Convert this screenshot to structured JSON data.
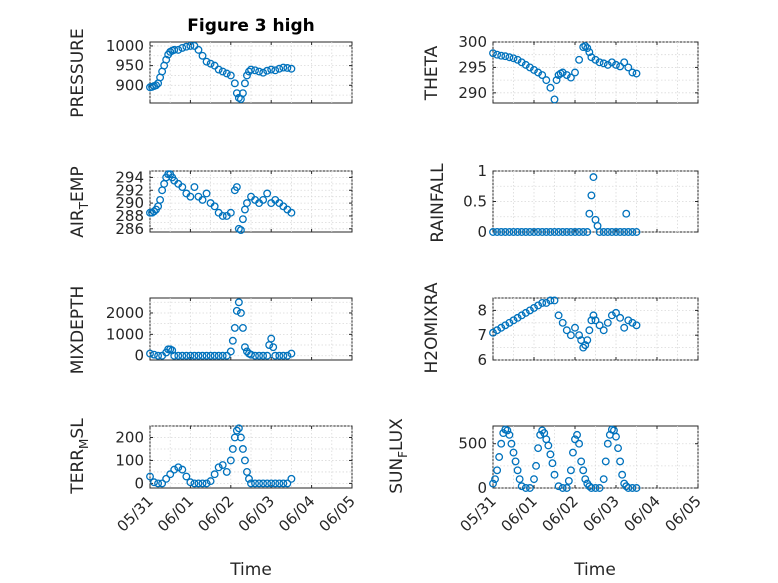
{
  "figure_title": "Figure 3 high",
  "colors": {
    "marker": "#0072BD",
    "axis": "#262626",
    "grid": "#d9d9d9"
  },
  "x_tick_labels": [
    "05/31",
    "06/01",
    "06/02",
    "06/03",
    "06/04",
    "06/05"
  ],
  "x_axis_label": "Time",
  "chart_data": [
    {
      "type": "scatter",
      "name": "PRESSURE",
      "ylabel": "PRESSURE",
      "yticks": [
        900,
        950,
        1000
      ],
      "ylim": [
        855,
        1010
      ],
      "grid": true,
      "x": [
        0.0,
        0.05,
        0.1,
        0.15,
        0.2,
        0.25,
        0.3,
        0.35,
        0.4,
        0.45,
        0.5,
        0.55,
        0.6,
        0.7,
        0.8,
        0.9,
        1.0,
        1.1,
        1.2,
        1.3,
        1.4,
        1.5,
        1.6,
        1.7,
        1.8,
        1.9,
        2.0,
        2.1,
        2.15,
        2.2,
        2.25,
        2.3,
        2.35,
        2.4,
        2.45,
        2.5,
        2.6,
        2.7,
        2.8,
        2.9,
        3.0,
        3.1,
        3.2,
        3.3,
        3.4,
        3.5
      ],
      "y": [
        895,
        896,
        898,
        900,
        905,
        920,
        935,
        950,
        965,
        978,
        985,
        988,
        990,
        990,
        995,
        998,
        1000,
        1000,
        990,
        975,
        960,
        955,
        950,
        940,
        935,
        930,
        925,
        905,
        880,
        868,
        865,
        880,
        905,
        925,
        935,
        940,
        938,
        935,
        932,
        937,
        940,
        938,
        942,
        945,
        944,
        942
      ]
    },
    {
      "type": "scatter",
      "name": "THETA",
      "ylabel": "THETA",
      "yticks": [
        290,
        295,
        300
      ],
      "ylim": [
        288,
        300
      ],
      "grid": true,
      "x": [
        0.0,
        0.1,
        0.2,
        0.3,
        0.4,
        0.5,
        0.6,
        0.7,
        0.8,
        0.9,
        1.0,
        1.1,
        1.2,
        1.3,
        1.4,
        1.5,
        1.55,
        1.6,
        1.65,
        1.7,
        1.8,
        1.9,
        2.0,
        2.1,
        2.2,
        2.25,
        2.3,
        2.35,
        2.4,
        2.5,
        2.6,
        2.7,
        2.8,
        2.9,
        3.0,
        3.1,
        3.2,
        3.3,
        3.4,
        3.5
      ],
      "y": [
        297.8,
        297.5,
        297.3,
        297.2,
        297.0,
        296.8,
        296.5,
        296.0,
        295.5,
        295.0,
        294.5,
        294.0,
        293.5,
        292.5,
        291.0,
        288.7,
        292.5,
        293.5,
        293.8,
        294.0,
        293.5,
        293.0,
        294.0,
        296.5,
        299.0,
        299.2,
        298.8,
        298.0,
        297.0,
        296.5,
        296.0,
        295.8,
        295.5,
        296.0,
        295.5,
        295.2,
        296.0,
        295.0,
        294.0,
        293.8
      ]
    },
    {
      "type": "scatter",
      "name": "AIR_TEMP",
      "ylabel": "AIR_TEMP",
      "yticks": [
        286,
        288,
        290,
        292,
        294
      ],
      "ylim": [
        285.5,
        295
      ],
      "grid": true,
      "x": [
        0.0,
        0.05,
        0.1,
        0.15,
        0.2,
        0.25,
        0.3,
        0.35,
        0.4,
        0.45,
        0.5,
        0.55,
        0.6,
        0.7,
        0.8,
        0.9,
        1.0,
        1.1,
        1.2,
        1.3,
        1.4,
        1.5,
        1.6,
        1.7,
        1.8,
        1.9,
        2.0,
        2.1,
        2.15,
        2.2,
        2.25,
        2.3,
        2.35,
        2.4,
        2.5,
        2.6,
        2.7,
        2.8,
        2.9,
        3.0,
        3.1,
        3.2,
        3.3,
        3.4,
        3.5
      ],
      "y": [
        288.5,
        288.5,
        288.7,
        289.0,
        289.5,
        290.5,
        292.0,
        293.0,
        294.0,
        294.5,
        294.5,
        294.0,
        293.5,
        293.0,
        292.5,
        291.5,
        291.0,
        292.5,
        291.0,
        290.5,
        291.5,
        290.0,
        289.5,
        288.5,
        288.0,
        288.0,
        288.5,
        292.0,
        292.5,
        286.0,
        285.8,
        287.5,
        289.0,
        290.0,
        291.0,
        290.5,
        290.0,
        290.5,
        291.5,
        290.0,
        290.5,
        290.0,
        289.5,
        289.0,
        288.5
      ]
    },
    {
      "type": "scatter",
      "name": "RAINFALL",
      "ylabel": "RAINFALL",
      "yticks": [
        0,
        0.5,
        1
      ],
      "ylim": [
        0,
        1
      ],
      "grid": true,
      "x": [
        0.0,
        0.1,
        0.2,
        0.3,
        0.4,
        0.5,
        0.6,
        0.7,
        0.8,
        0.9,
        1.0,
        1.1,
        1.2,
        1.3,
        1.4,
        1.5,
        1.6,
        1.7,
        1.8,
        1.9,
        2.0,
        2.1,
        2.2,
        2.3,
        2.35,
        2.4,
        2.45,
        2.5,
        2.55,
        2.6,
        2.7,
        2.8,
        2.9,
        3.0,
        3.1,
        3.2,
        3.25,
        3.3,
        3.4,
        3.5
      ],
      "y": [
        0,
        0,
        0,
        0,
        0,
        0,
        0,
        0,
        0,
        0,
        0,
        0,
        0,
        0,
        0,
        0,
        0,
        0,
        0,
        0,
        0,
        0,
        0,
        0,
        0.3,
        0.6,
        0.9,
        0.2,
        0.1,
        0,
        0,
        0,
        0,
        0,
        0,
        0,
        0.3,
        0,
        0,
        0
      ]
    },
    {
      "type": "scatter",
      "name": "MIXDEPTH",
      "ylabel": "MIXDEPTH",
      "yticks": [
        0,
        1000,
        2000
      ],
      "ylim": [
        -200,
        2700
      ],
      "grid": true,
      "x": [
        0.0,
        0.1,
        0.2,
        0.3,
        0.4,
        0.45,
        0.5,
        0.55,
        0.6,
        0.7,
        0.8,
        0.9,
        1.0,
        1.1,
        1.2,
        1.3,
        1.4,
        1.5,
        1.6,
        1.7,
        1.8,
        1.9,
        2.0,
        2.05,
        2.1,
        2.15,
        2.2,
        2.25,
        2.3,
        2.35,
        2.4,
        2.45,
        2.5,
        2.6,
        2.7,
        2.8,
        2.9,
        2.95,
        3.0,
        3.05,
        3.1,
        3.2,
        3.3,
        3.4,
        3.5
      ],
      "y": [
        100,
        50,
        0,
        0,
        150,
        300,
        300,
        250,
        0,
        0,
        0,
        0,
        0,
        0,
        0,
        0,
        0,
        0,
        0,
        0,
        0,
        0,
        200,
        700,
        1300,
        2100,
        2500,
        2000,
        1300,
        400,
        200,
        100,
        50,
        0,
        0,
        0,
        0,
        500,
        800,
        400,
        0,
        0,
        0,
        0,
        100
      ]
    },
    {
      "type": "scatter",
      "name": "H2OMIXRA",
      "ylabel": "H2OMIXRA",
      "yticks": [
        6,
        7,
        8
      ],
      "ylim": [
        6,
        8.5
      ],
      "grid": true,
      "x": [
        0.0,
        0.1,
        0.2,
        0.3,
        0.4,
        0.5,
        0.6,
        0.7,
        0.8,
        0.9,
        1.0,
        1.1,
        1.2,
        1.3,
        1.4,
        1.5,
        1.6,
        1.7,
        1.8,
        1.9,
        2.0,
        2.1,
        2.15,
        2.2,
        2.25,
        2.3,
        2.35,
        2.4,
        2.45,
        2.5,
        2.6,
        2.7,
        2.8,
        2.9,
        3.0,
        3.1,
        3.2,
        3.3,
        3.4,
        3.5
      ],
      "y": [
        7.1,
        7.2,
        7.3,
        7.4,
        7.5,
        7.6,
        7.7,
        7.8,
        7.9,
        8.0,
        8.1,
        8.2,
        8.3,
        8.3,
        8.4,
        8.4,
        7.8,
        7.5,
        7.2,
        7.0,
        7.3,
        7.0,
        6.8,
        6.5,
        6.6,
        6.8,
        7.2,
        7.6,
        7.8,
        7.6,
        7.4,
        7.2,
        7.5,
        7.8,
        7.9,
        7.7,
        7.3,
        7.6,
        7.5,
        7.4
      ]
    },
    {
      "type": "scatter",
      "name": "TERR_MSL",
      "ylabel": "TERR_MSL",
      "yticks": [
        0,
        100,
        200
      ],
      "ylim": [
        -20,
        250
      ],
      "grid": true,
      "x": [
        0.0,
        0.1,
        0.2,
        0.3,
        0.4,
        0.5,
        0.6,
        0.7,
        0.8,
        0.9,
        1.0,
        1.1,
        1.2,
        1.3,
        1.4,
        1.5,
        1.6,
        1.7,
        1.8,
        1.9,
        2.0,
        2.05,
        2.1,
        2.15,
        2.2,
        2.25,
        2.3,
        2.35,
        2.4,
        2.45,
        2.5,
        2.6,
        2.7,
        2.8,
        2.9,
        3.0,
        3.1,
        3.2,
        3.3,
        3.4,
        3.5
      ],
      "y": [
        30,
        5,
        0,
        0,
        20,
        40,
        60,
        70,
        60,
        30,
        5,
        0,
        0,
        0,
        0,
        10,
        40,
        70,
        80,
        50,
        100,
        150,
        200,
        230,
        240,
        200,
        150,
        100,
        50,
        20,
        0,
        0,
        0,
        0,
        0,
        0,
        0,
        0,
        0,
        0,
        20
      ]
    },
    {
      "type": "scatter",
      "name": "SUN_FLUX",
      "ylabel": "SUN_FLUX",
      "yticks": [
        0,
        500
      ],
      "ylim": [
        0,
        700
      ],
      "grid": true,
      "x": [
        0.0,
        0.05,
        0.1,
        0.15,
        0.2,
        0.25,
        0.3,
        0.35,
        0.4,
        0.45,
        0.5,
        0.55,
        0.6,
        0.65,
        0.7,
        0.8,
        0.9,
        1.0,
        1.05,
        1.1,
        1.15,
        1.2,
        1.25,
        1.3,
        1.35,
        1.4,
        1.45,
        1.5,
        1.6,
        1.7,
        1.8,
        1.85,
        1.9,
        1.95,
        2.0,
        2.05,
        2.1,
        2.15,
        2.2,
        2.25,
        2.3,
        2.35,
        2.4,
        2.5,
        2.6,
        2.7,
        2.75,
        2.8,
        2.85,
        2.9,
        2.95,
        3.0,
        3.05,
        3.1,
        3.15,
        3.2,
        3.25,
        3.3,
        3.4,
        3.5
      ],
      "y": [
        50,
        100,
        200,
        350,
        500,
        620,
        660,
        650,
        600,
        500,
        400,
        300,
        200,
        100,
        20,
        0,
        0,
        100,
        250,
        450,
        600,
        650,
        620,
        550,
        480,
        380,
        280,
        150,
        20,
        0,
        0,
        80,
        200,
        400,
        550,
        600,
        500,
        300,
        200,
        100,
        50,
        20,
        0,
        0,
        0,
        100,
        300,
        500,
        600,
        660,
        650,
        580,
        450,
        300,
        150,
        50,
        20,
        0,
        0,
        0
      ]
    }
  ]
}
